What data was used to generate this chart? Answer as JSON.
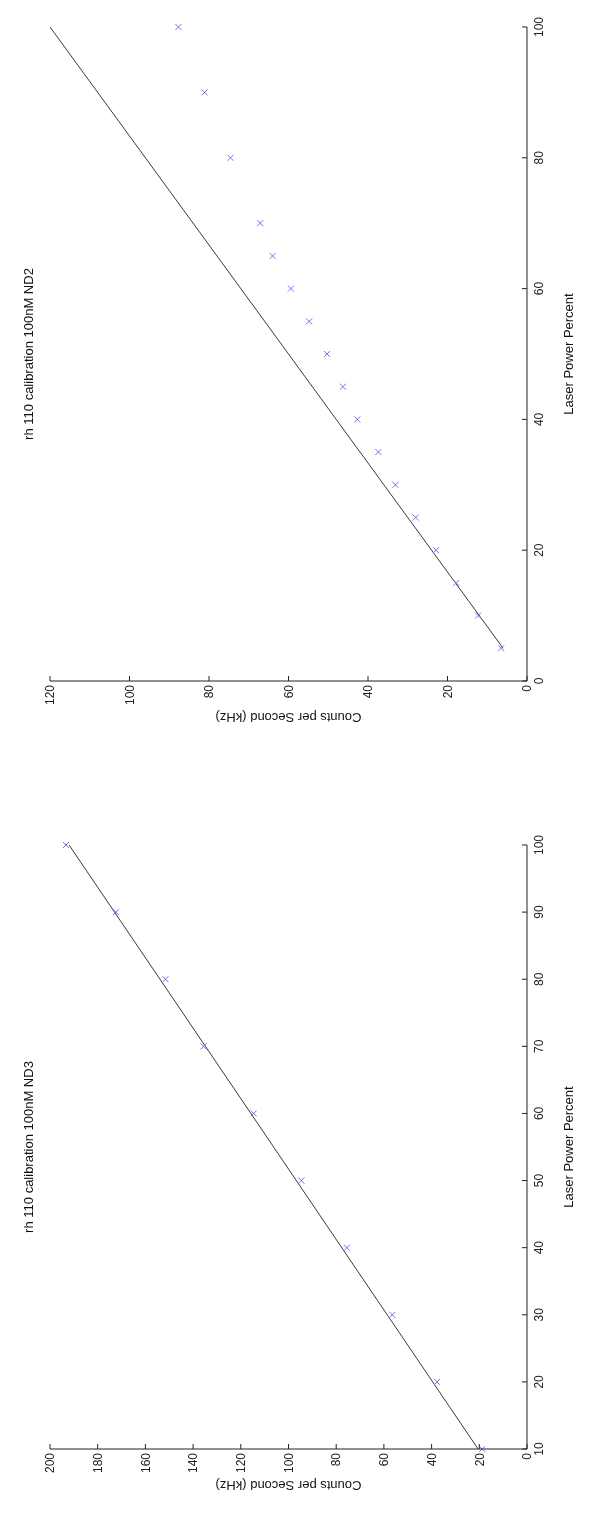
{
  "chart_data": [
    {
      "type": "scatter",
      "title": "rh 110 calibration 100nM ND2",
      "xlabel": "Counts per Second (kHz)",
      "ylabel": "Laser Power Percent",
      "xlim": [
        120,
        0
      ],
      "ylim": [
        0,
        100
      ],
      "xticks": [
        120,
        100,
        80,
        60,
        40,
        20,
        0
      ],
      "yticks": [
        0,
        20,
        40,
        60,
        80,
        100
      ],
      "series": [
        {
          "marker": "cross",
          "color": "#7070ff",
          "x": [
            6.5,
            12.3,
            17.8,
            22.9,
            28.0,
            33.1,
            37.4,
            42.7,
            46.3,
            50.3,
            54.8,
            59.4,
            64.0,
            67.1,
            74.6,
            81.1,
            87.7
          ],
          "values": [
            5,
            10,
            15,
            20,
            25,
            30,
            35,
            40,
            45,
            50,
            55,
            60,
            65,
            70,
            80,
            90,
            100
          ]
        },
        {
          "type": "line",
          "marker": "none",
          "color": "#3a3a3a",
          "x": [
            6,
            120
          ],
          "values": [
            5,
            100
          ]
        }
      ]
    },
    {
      "type": "scatter",
      "title": "rh 110 calibration 100nM ND3",
      "xlabel": "Counts per Second (kHz)",
      "ylabel": "Laser Power Percent",
      "xlim": [
        200,
        0
      ],
      "ylim": [
        10,
        100
      ],
      "xticks": [
        200,
        180,
        160,
        140,
        120,
        100,
        80,
        60,
        40,
        20,
        0
      ],
      "yticks": [
        10,
        20,
        30,
        40,
        50,
        60,
        70,
        80,
        90,
        100
      ],
      "series": [
        {
          "marker": "cross",
          "color": "#7070ff",
          "x": [
            18.8,
            37.7,
            56.5,
            75.5,
            94.6,
            114.6,
            135.6,
            151.6,
            172.4,
            193.3
          ],
          "values": [
            10,
            20,
            30,
            40,
            50,
            60,
            70,
            80,
            90,
            100
          ]
        },
        {
          "type": "line",
          "marker": "none",
          "color": "#3a3a3a",
          "x": [
            20.5,
            192
          ],
          "values": [
            10,
            100
          ]
        }
      ]
    }
  ]
}
